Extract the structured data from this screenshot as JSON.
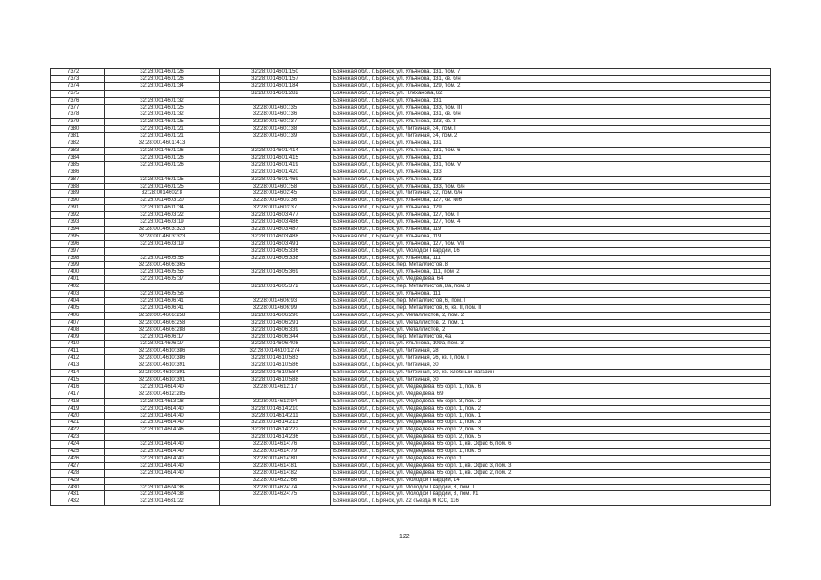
{
  "page_number": "122",
  "region_prefix": "Брянская обл., г. Брянск, ",
  "rows": [
    [
      "7372",
      "32:28:0014601:26",
      "32:28:0014601:150",
      "ул. Ульянова, 131, пом. 7"
    ],
    [
      "7373",
      "32:28:0014601:26",
      "32:28:0014601:157",
      "ул. Ульянова, 131, кв. б/н"
    ],
    [
      "7374",
      "32:28:0014601:34",
      "32:28:0014601:184",
      "ул. Ульянова, 129, пом. 2"
    ],
    [
      "7375",
      "",
      "32:28:0014601:282",
      "ул. Плеханова, 62"
    ],
    [
      "7376",
      "32:28:0014601:32",
      "",
      "ул. Ульянова, 131"
    ],
    [
      "7377",
      "32:28:0014601:25",
      "32:28:0014601:35",
      "ул. Ульянова, 133, пом. III"
    ],
    [
      "7378",
      "32:28:0014601:32",
      "32:28:0014601:36",
      "ул. Ульянова, 131, кв. б/н"
    ],
    [
      "7379",
      "32:28:0014601:25",
      "32:28:0014601:37",
      "ул. Ульянова, 133, кв. 3"
    ],
    [
      "7380",
      "32:28:0014601:21",
      "32:28:0014601:38",
      "ул. Литейная, 34, пом. I"
    ],
    [
      "7381",
      "32:28:0014601:21",
      "32:28:0014601:39",
      "ул. Литейная, 34, пом. 2"
    ],
    [
      "7382",
      "32:28:0014601:413",
      "",
      "ул. Ульянова, 131"
    ],
    [
      "7383",
      "32:28:0014601:26",
      "32:28:0014601:414",
      "ул. Ульянова, 131, пом. 6"
    ],
    [
      "7384",
      "32:28:0014601:26",
      "32:28:0014601:415",
      "ул. Ульянова, 131"
    ],
    [
      "7385",
      "32:28:0014601:26",
      "32:28:0014601:419",
      "ул. Ульянова, 131, пом. V"
    ],
    [
      "7386",
      "",
      "32:28:0014601:420",
      "ул. Ульянова, 133"
    ],
    [
      "7387",
      "32:28:0014601:25",
      "32:28:0014601:469",
      "ул. Ульянова, 133"
    ],
    [
      "7388",
      "32:28:0014601:25",
      "32:28:0014601:58",
      "ул. Ульянова, 133, пом. б/н"
    ],
    [
      "7389",
      "32:28:0014602:8",
      "32:28:0014602:45",
      "ул. Литейная, 32, пом. б/н"
    ],
    [
      "7390",
      "32:28:0014603:20",
      "32:28:0014603:36",
      "ул. Ульянова, 127, кв. №6"
    ],
    [
      "7391",
      "32:28:0014601:34",
      "32:28:0014603:37",
      "ул. Ульянова, 129"
    ],
    [
      "7392",
      "32:28:0014603:22",
      "32:28:0014603:477",
      "ул. Ульянова, 127, пом. I"
    ],
    [
      "7393",
      "32:28:0014603:19",
      "32:28:0014603:486",
      "ул. Ульянова, 127, пом. 4"
    ],
    [
      "7394",
      "32:28:0014603:323",
      "32:28:0014603:487",
      "ул. Ульянова, 119"
    ],
    [
      "7395",
      "32:28:0014603:323",
      "32:28:0014603:488",
      "ул. Ульянова, 119"
    ],
    [
      "7396",
      "32:28:0014603:19",
      "32:28:0014603:491",
      "ул. Ульянова, 127, пом. VII"
    ],
    [
      "7397",
      "",
      "32:28:0014605:336",
      "ул. Молодой Гвардии, 16"
    ],
    [
      "7398",
      "32:28:0014605:55",
      "32:28:0014605:338",
      "ул. Ульянова, 111"
    ],
    [
      "7399",
      "32:28:0014606:365",
      "",
      "пер. Металлистов, 8"
    ],
    [
      "7400",
      "32:28:0014605:55",
      "32:28:0014605:369",
      "ул. Ульянова, 111, пом. 2"
    ],
    [
      "7401",
      "32:28:0014605:37",
      "",
      "ул. Медведева, 64"
    ],
    [
      "7402",
      "",
      "32:28:0014605:372",
      "пер. Металлистов, 8а, пом. 3"
    ],
    [
      "7403",
      "32:28:0014605:56",
      "",
      "ул. Ульянова, 111"
    ],
    [
      "7404",
      "32:28:0014606:41",
      "32:28:0014606:93",
      "пер. Металлистов, 6, пом. I"
    ],
    [
      "7405",
      "32:28:0014606:41",
      "32:28:0014606:99",
      "пер. Металлистов, 6, кв. II, пом. II"
    ],
    [
      "7406",
      "32:28:0014606:258",
      "32:28:0014606:290",
      "ул. Металлистов, 2, пом. 2"
    ],
    [
      "7407",
      "32:28:0014606:258",
      "32:28:0014606:291",
      "ул. Металлистов, 2, пом. 1"
    ],
    [
      "7408",
      "32:28:0014606:288",
      "32:28:0014606:339",
      "ул. Металлистов, 2"
    ],
    [
      "7409",
      "32:28:0014606:17",
      "32:28:0014606:344",
      "пер. Металлистов, 4а"
    ],
    [
      "7410",
      "32:28:0014606:27",
      "32:28:0014606:408",
      "ул. Ульянова, 109а, пом. 3"
    ],
    [
      "7411",
      "32:28:0014610:386",
      "32:28:0014610:1274",
      "ул. Литейная, 28"
    ],
    [
      "7412",
      "32:28:0014610:386",
      "32:28:0014610:583",
      "ул. Литейная, 26, кв. I, пом. I"
    ],
    [
      "7413",
      "32:28:0014610:391",
      "32:28:0014610:586",
      "ул. Литейная, 30"
    ],
    [
      "7414",
      "32:28:0014610:391",
      "32:28:0014610:584",
      "ул. Литейная, 30, кв. хлебный магазин"
    ],
    [
      "7415",
      "32:28:0014610:391",
      "32:28:0014610:588",
      "ул. Литейная, 30"
    ],
    [
      "7416",
      "32:28:0014614:40",
      "32:28:0014612:17",
      "ул. Медведева, 65 корп. 1, пом. 6"
    ],
    [
      "7417",
      "32:28:0014612:285",
      "",
      "ул. Медведева, 69"
    ],
    [
      "7418",
      "32:28:0014613:28",
      "32:28:0014613:94",
      "ул. Медведева, 65 корп. 3, пом. 2"
    ],
    [
      "7419",
      "32:28:0014614:40",
      "32:28:0014614:210",
      "ул. Медведева, 65 корп. 1, пом. 2"
    ],
    [
      "7420",
      "32:28:0014614:40",
      "32:28:0014614:211",
      "ул. Медведева, 65 корп. 1, пом. 1"
    ],
    [
      "7421",
      "32:28:0014614:40",
      "32:28:0014614:213",
      "ул. Медведева, 65 корп. 1, пом. 3"
    ],
    [
      "7422",
      "32:28:0014614:46",
      "32:28:0014614:222",
      "ул. Медведева, 65 корп. 2, пом. 3"
    ],
    [
      "7423",
      "",
      "32:28:0014614:236",
      "ул. Медведева, 65 корп. 2, пом. 5"
    ],
    [
      "7424",
      "32:28:0014614:40",
      "32:28:0014614:76",
      "ул. Медведева, 65 корп. 1, кв. Офис 6, пом. 6"
    ],
    [
      "7425",
      "32:28:0014614:40",
      "32:28:0014614:79",
      "ул. Медведева, 65 корп. 1, пом. 5"
    ],
    [
      "7426",
      "32:28:0014614:40",
      "32:28:0014614:80",
      "ул. Медведева, 65 корп. 1"
    ],
    [
      "7427",
      "32:28:0014614:40",
      "32:28:0014614:81",
      "ул. Медведева, 65 корп. 1, кв. Офис 3, пом. 3"
    ],
    [
      "7428",
      "32:28:0014614:40",
      "32:28:0014614:82",
      "ул. Медведева, 65 корп. 1, кв. Офис 2, пом. 2"
    ],
    [
      "7429",
      "",
      "32:28:0014622:66",
      "ул. Молодой Гвардии, 14"
    ],
    [
      "7430",
      "32:28:0014624:38",
      "32:28:0014624:74",
      "ул. Молодой Гвардии, 8, пом. I"
    ],
    [
      "7431",
      "32:28:0014624:38",
      "32:28:0014624:75",
      "ул. Молодой Гвардии, 8, пом. I/1"
    ],
    [
      "7432",
      "32:28:0014631:22",
      "",
      "ул. 22 съезда КПСС, 116"
    ]
  ]
}
